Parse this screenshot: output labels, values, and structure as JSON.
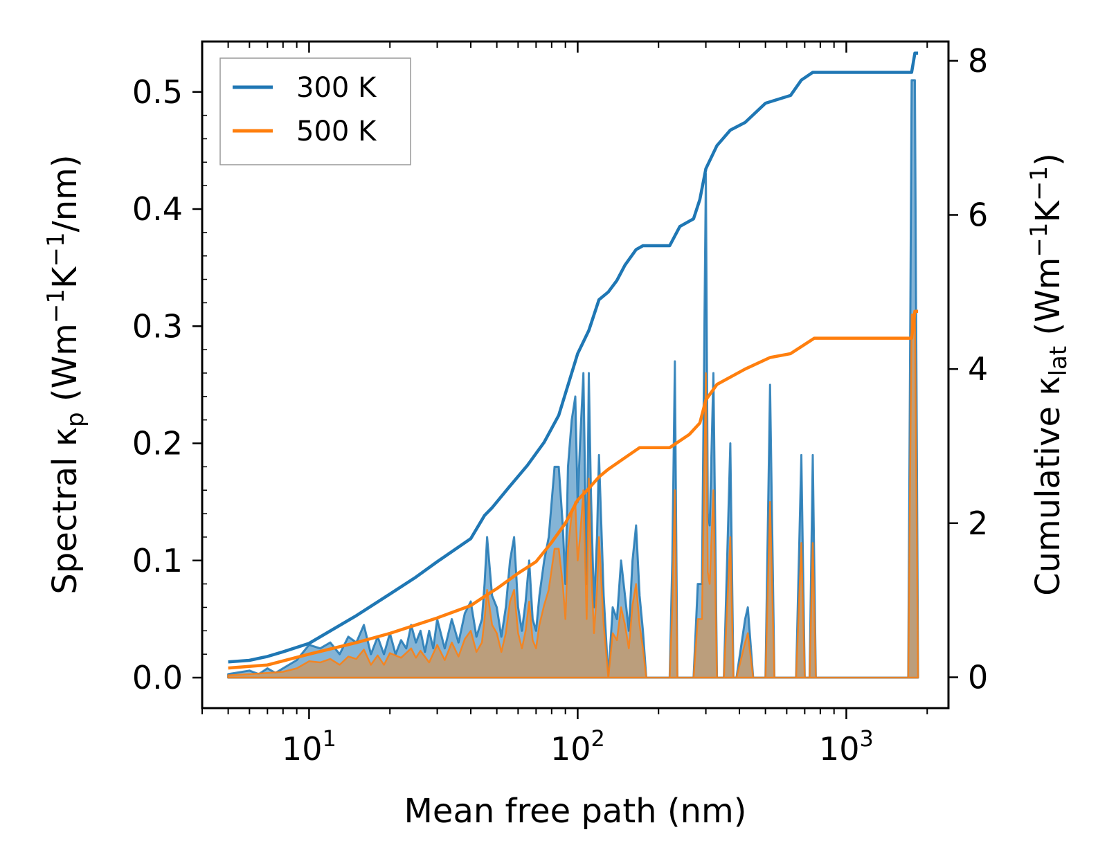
{
  "chart_data": {
    "type": "line",
    "title": "",
    "xlabel": "Mean free path (nm)",
    "xscale": "log",
    "xlim": [
      4,
      2400
    ],
    "xticks": [
      {
        "value": 10,
        "base": "10",
        "exp": "1"
      },
      {
        "value": 100,
        "base": "10",
        "exp": "2"
      },
      {
        "value": 1000,
        "base": "10",
        "exp": "3"
      }
    ],
    "ylabel_left": {
      "pre": "Spectral κ",
      "sub": "p",
      "post": " (Wm",
      "e1": "−1",
      "mid": "K",
      "e2": "−1",
      "tail": "/nm)"
    },
    "ylabel_right": {
      "pre": "Cumulative κ",
      "sub": "lat",
      "post": " (Wm",
      "e1": "−1",
      "mid": "K",
      "e2": "−1",
      "tail": ")"
    },
    "ylim_left": [
      -0.026,
      0.543
    ],
    "ylim_right": [
      -0.4,
      8.25
    ],
    "yticks_left": [
      "0.0",
      "0.1",
      "0.2",
      "0.3",
      "0.4",
      "0.5"
    ],
    "yticks_right": [
      "0",
      "2",
      "4",
      "6",
      "8"
    ],
    "legend": {
      "position": "top-left",
      "entries": [
        "300 K",
        "500 K"
      ]
    },
    "colors": {
      "300 K": "#1f77b4",
      "500 K": "#ff7f0e",
      "overlap_fill": "#c49a6c"
    },
    "cumulative": [
      {
        "name": "300 K",
        "axis": "right",
        "x": [
          5,
          6,
          7,
          8,
          10,
          15,
          20,
          25,
          30,
          40,
          45,
          48,
          55,
          65,
          75,
          85,
          100,
          110,
          120,
          130,
          140,
          150,
          165,
          175,
          220,
          240,
          270,
          285,
          300,
          330,
          370,
          420,
          500,
          620,
          680,
          750,
          1750,
          1800,
          1850
        ],
        "y": [
          0.2,
          0.22,
          0.27,
          0.33,
          0.44,
          0.8,
          1.08,
          1.3,
          1.5,
          1.8,
          2.1,
          2.2,
          2.45,
          2.75,
          3.05,
          3.4,
          4.2,
          4.5,
          4.9,
          5.0,
          5.15,
          5.35,
          5.55,
          5.6,
          5.6,
          5.85,
          5.95,
          6.2,
          6.6,
          6.9,
          7.1,
          7.2,
          7.45,
          7.55,
          7.75,
          7.85,
          7.85,
          8.1,
          8.1
        ]
      },
      {
        "name": "500 K",
        "axis": "right",
        "x": [
          5,
          7,
          10,
          15,
          20,
          25,
          30,
          40,
          45,
          50,
          60,
          70,
          80,
          90,
          100,
          110,
          120,
          130,
          150,
          170,
          220,
          260,
          285,
          300,
          330,
          420,
          520,
          620,
          760,
          1750,
          1800,
          1850
        ],
        "y": [
          0.12,
          0.16,
          0.3,
          0.45,
          0.57,
          0.68,
          0.77,
          0.93,
          1.05,
          1.15,
          1.35,
          1.5,
          1.75,
          2.0,
          2.3,
          2.45,
          2.6,
          2.7,
          2.85,
          2.98,
          2.98,
          3.15,
          3.3,
          3.6,
          3.8,
          4.0,
          4.15,
          4.2,
          4.4,
          4.4,
          4.75,
          4.75
        ]
      }
    ],
    "spectral": [
      {
        "name": "300 K",
        "axis": "left",
        "x": [
          5,
          6,
          6.5,
          7,
          7.5,
          8,
          9,
          10,
          11,
          12,
          13,
          14,
          15,
          16,
          17,
          18,
          19,
          20,
          21,
          22,
          23,
          24,
          25,
          26,
          27,
          28,
          29,
          30,
          32,
          34,
          36,
          38,
          40,
          42,
          44,
          45,
          46,
          48,
          50,
          52,
          54,
          56,
          58,
          60,
          62,
          64,
          66,
          68,
          70,
          72,
          75,
          78,
          82,
          85,
          88,
          90,
          92,
          95,
          98,
          100,
          102,
          105,
          108,
          110,
          112,
          115,
          118,
          120,
          125,
          130,
          135,
          140,
          145,
          150,
          155,
          160,
          165,
          170,
          175,
          180,
          220,
          225,
          230,
          235,
          250,
          270,
          280,
          290,
          300,
          305,
          310,
          320,
          330,
          350,
          370,
          380,
          390,
          420,
          430,
          450,
          500,
          520,
          540,
          620,
          650,
          680,
          700,
          730,
          750,
          770,
          790,
          1700,
          1750,
          1800,
          1850
        ],
        "y": [
          0.003,
          0.006,
          0.003,
          0.008,
          0.004,
          0.008,
          0.015,
          0.028,
          0.025,
          0.03,
          0.02,
          0.035,
          0.03,
          0.045,
          0.02,
          0.035,
          0.02,
          0.038,
          0.02,
          0.032,
          0.025,
          0.045,
          0.03,
          0.04,
          0.022,
          0.04,
          0.025,
          0.05,
          0.025,
          0.05,
          0.03,
          0.055,
          0.065,
          0.035,
          0.05,
          0.08,
          0.12,
          0.07,
          0.06,
          0.035,
          0.06,
          0.1,
          0.12,
          0.06,
          0.04,
          0.065,
          0.1,
          0.05,
          0.04,
          0.07,
          0.1,
          0.12,
          0.18,
          0.18,
          0.13,
          0.08,
          0.18,
          0.22,
          0.24,
          0.15,
          0.2,
          0.26,
          0.08,
          0.26,
          0.16,
          0.06,
          0.12,
          0.19,
          0.07,
          0.0,
          0.06,
          0.05,
          0.1,
          0.07,
          0.04,
          0.1,
          0.13,
          0.07,
          0.04,
          0.0,
          0.0,
          0.1,
          0.27,
          0.0,
          0.0,
          0.0,
          0.08,
          0.08,
          0.43,
          0.14,
          0.13,
          0.26,
          0.0,
          0.0,
          0.2,
          0.0,
          0.0,
          0.05,
          0.06,
          0.0,
          0.0,
          0.25,
          0.0,
          0.0,
          0.0,
          0.19,
          0.0,
          0.0,
          0.19,
          0.0,
          0.0,
          0.0,
          0.51,
          0.51,
          0.0
        ]
      },
      {
        "name": "500 K",
        "axis": "left",
        "x": [
          5,
          6,
          7,
          8,
          9,
          10,
          11,
          12,
          13,
          14,
          15,
          16,
          17,
          18,
          19,
          20,
          22,
          24,
          25,
          26,
          28,
          30,
          32,
          34,
          36,
          38,
          40,
          42,
          44,
          45,
          46,
          48,
          50,
          52,
          54,
          56,
          58,
          60,
          62,
          64,
          66,
          68,
          70,
          72,
          75,
          78,
          82,
          85,
          88,
          90,
          92,
          95,
          98,
          100,
          102,
          105,
          108,
          110,
          112,
          115,
          118,
          120,
          125,
          130,
          135,
          140,
          145,
          150,
          155,
          160,
          165,
          170,
          175,
          180,
          220,
          225,
          230,
          235,
          250,
          270,
          280,
          290,
          300,
          305,
          310,
          320,
          330,
          350,
          370,
          380,
          390,
          420,
          430,
          450,
          500,
          520,
          540,
          620,
          650,
          680,
          700,
          730,
          750,
          770,
          790,
          1700,
          1750,
          1800,
          1850
        ],
        "y": [
          0.002,
          0.003,
          0.004,
          0.005,
          0.008,
          0.014,
          0.013,
          0.016,
          0.011,
          0.018,
          0.016,
          0.024,
          0.011,
          0.019,
          0.011,
          0.021,
          0.017,
          0.025,
          0.017,
          0.023,
          0.013,
          0.028,
          0.015,
          0.03,
          0.018,
          0.033,
          0.04,
          0.022,
          0.03,
          0.05,
          0.075,
          0.045,
          0.038,
          0.022,
          0.038,
          0.065,
          0.075,
          0.038,
          0.025,
          0.04,
          0.065,
          0.032,
          0.025,
          0.045,
          0.062,
          0.075,
          0.11,
          0.11,
          0.08,
          0.05,
          0.11,
          0.14,
          0.15,
          0.1,
          0.12,
          0.16,
          0.05,
          0.17,
          0.1,
          0.038,
          0.075,
          0.12,
          0.045,
          0.0,
          0.038,
          0.032,
          0.06,
          0.045,
          0.025,
          0.062,
          0.08,
          0.045,
          0.025,
          0.0,
          0.0,
          0.06,
          0.16,
          0.0,
          0.0,
          0.0,
          0.05,
          0.05,
          0.26,
          0.09,
          0.08,
          0.16,
          0.0,
          0.0,
          0.12,
          0.0,
          0.0,
          0.03,
          0.038,
          0.0,
          0.0,
          0.15,
          0.0,
          0.0,
          0.0,
          0.115,
          0.0,
          0.0,
          0.115,
          0.0,
          0.0,
          0.0,
          0.31,
          0.31,
          0.0
        ]
      }
    ]
  }
}
